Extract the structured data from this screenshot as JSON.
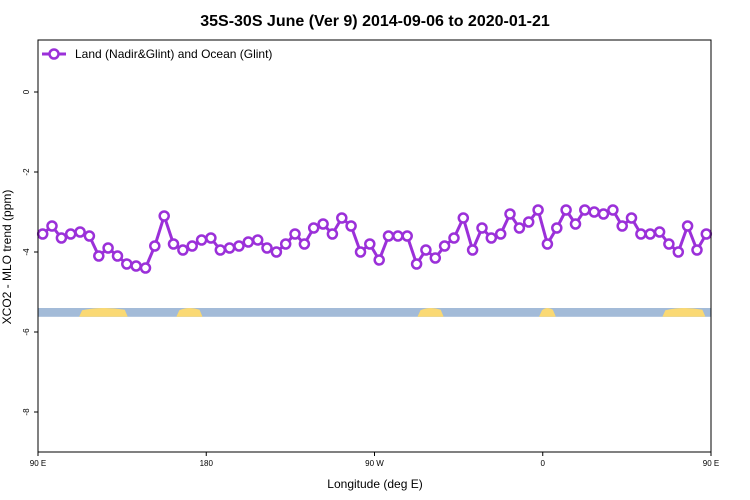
{
  "chart_data": {
    "type": "line",
    "title": "35S-30S June (Ver 9)   2014-09-06 to 2020-01-21",
    "xlabel": "Longitude (deg E)",
    "ylabel": "XCO2 - MLO trend (ppm)",
    "xlim": [
      90,
      450
    ],
    "ylim": [
      -9.0,
      1.3
    ],
    "x_ticks": [
      {
        "value": 90,
        "label": "90 E"
      },
      {
        "value": 180,
        "label": "180"
      },
      {
        "value": 270,
        "label": "90 W"
      },
      {
        "value": 360,
        "label": "0"
      },
      {
        "value": 450,
        "label": "90 E"
      },
      {
        "value": 540,
        "label": "180"
      }
    ],
    "y_ticks": [
      {
        "value": 0,
        "label": "0"
      },
      {
        "value": -2,
        "label": "-2"
      },
      {
        "value": -4,
        "label": "-4"
      },
      {
        "value": -6,
        "label": "-6"
      },
      {
        "value": -8,
        "label": "-8"
      }
    ],
    "legend": {
      "placement": "top-left"
    },
    "series": [
      {
        "name": "Land (Nadir&Glint) and Ocean (Glint)",
        "color": "#9B30D9",
        "x": [
          92.5,
          97.5,
          102.5,
          107.5,
          112.5,
          117.5,
          122.5,
          127.5,
          132.5,
          137.5,
          142.5,
          147.5,
          152.5,
          157.5,
          162.5,
          167.5,
          172.5,
          177.5,
          182.5,
          187.5,
          192.5,
          197.5,
          202.5,
          207.5,
          212.5,
          217.5,
          222.5,
          227.5,
          232.5,
          237.5,
          242.5,
          247.5,
          252.5,
          257.5,
          262.5,
          267.5,
          272.5,
          277.5,
          282.5,
          287.5,
          292.5,
          297.5,
          302.5,
          307.5,
          312.5,
          317.5,
          322.5,
          327.5,
          332.5,
          337.5,
          342.5,
          347.5,
          352.5,
          357.5,
          362.5,
          367.5,
          372.5,
          377.5,
          382.5,
          387.5,
          392.5,
          397.5,
          402.5,
          407.5,
          412.5,
          417.5,
          422.5,
          427.5,
          432.5,
          437.5,
          442.5,
          447.5
        ],
        "values": [
          -3.55,
          -3.35,
          -3.65,
          -3.55,
          -3.5,
          -3.6,
          -4.1,
          -3.9,
          -4.1,
          -4.3,
          -4.35,
          -4.4,
          -3.85,
          -3.1,
          -3.8,
          -3.95,
          -3.85,
          -3.7,
          -3.65,
          -3.95,
          -3.9,
          -3.85,
          -3.75,
          -3.7,
          -3.9,
          -4.0,
          -3.8,
          -3.55,
          -3.8,
          -3.4,
          -3.3,
          -3.55,
          -3.15,
          -3.35,
          -4.0,
          -3.8,
          -4.2,
          -3.6,
          -3.6,
          -3.6,
          -4.3,
          -3.95,
          -4.15,
          -3.85,
          -3.65,
          -3.15,
          -3.95,
          -3.4,
          -3.65,
          -3.55,
          -3.05,
          -3.4,
          -3.25,
          -2.95,
          -3.8,
          -3.4,
          -2.95,
          -3.3,
          -2.95,
          -3.0,
          -3.05,
          -2.95,
          -3.35,
          -3.15,
          -3.55,
          -3.55,
          -3.5,
          -3.8,
          -4.0,
          -3.35,
          -3.95,
          -3.55
        ]
      }
    ],
    "land_ocean_bar": {
      "y_range": [
        -5.4,
        -5.62
      ],
      "ocean_color": "#A3BBD8",
      "land_color": "#FAD974",
      "land_segments": [
        [
          112,
          138
        ],
        [
          164,
          178
        ],
        [
          293,
          307
        ],
        [
          358,
          367
        ],
        [
          424,
          447
        ]
      ]
    }
  }
}
